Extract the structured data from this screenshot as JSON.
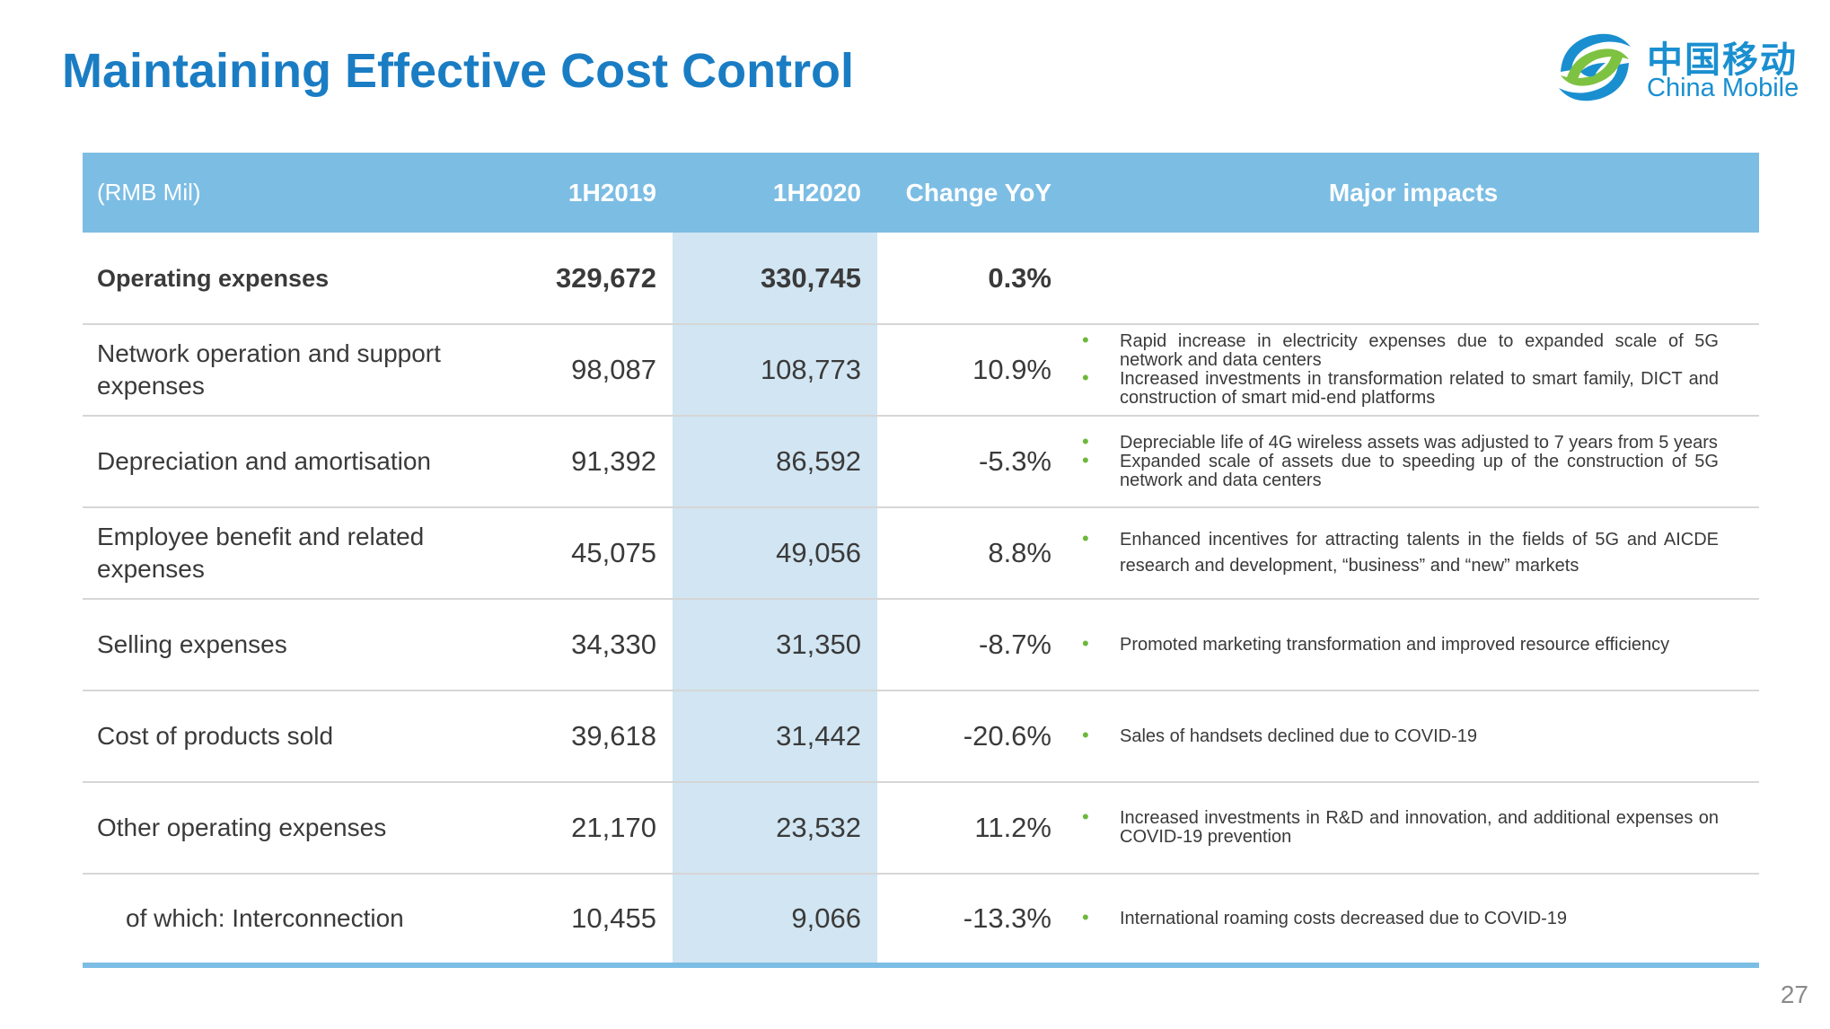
{
  "title": "Maintaining Effective Cost Control",
  "logo": {
    "cn": "中国移动",
    "en": "China Mobile",
    "icon": "china-mobile-logo-icon"
  },
  "table": {
    "headers": {
      "unit": "(RMB Mil)",
      "h2019": "1H2019",
      "h2020": "1H2020",
      "change": "Change YoY",
      "impacts": "Major impacts"
    },
    "rows": [
      {
        "label": "Operating expenses",
        "h2019": "329,672",
        "h2020": "330,745",
        "change": "0.3%",
        "impacts": []
      },
      {
        "label": "Network operation and support expenses",
        "h2019": "98,087",
        "h2020": "108,773",
        "change": "10.9%",
        "impacts": [
          "Rapid increase in electricity expenses due to expanded scale of 5G network and data centers",
          "Increased investments in transformation related to smart family, DICT and construction of smart mid-end platforms"
        ]
      },
      {
        "label": "Depreciation and amortisation",
        "h2019": "91,392",
        "h2020": "86,592",
        "change": "-5.3%",
        "impacts": [
          "Depreciable life of 4G wireless assets was adjusted to 7 years from 5 years",
          "Expanded scale of assets due to speeding up of the construction of 5G network and data centers"
        ]
      },
      {
        "label": "Employee benefit and related expenses",
        "h2019": "45,075",
        "h2020": "49,056",
        "change": "8.8%",
        "impacts": [
          "Enhanced incentives for attracting talents in the fields of 5G and AICDE research and development, “business” and “new” markets"
        ]
      },
      {
        "label": "Selling expenses",
        "h2019": "34,330",
        "h2020": "31,350",
        "change": "-8.7%",
        "impacts": [
          "Promoted marketing transformation and improved resource efficiency"
        ]
      },
      {
        "label": "Cost of products sold",
        "h2019": "39,618",
        "h2020": "31,442",
        "change": "-20.6%",
        "impacts": [
          "Sales of handsets declined due to COVID-19"
        ]
      },
      {
        "label": "Other operating expenses",
        "h2019": "21,170",
        "h2020": "23,532",
        "change": "11.2%",
        "impacts": [
          "Increased investments in R&D and innovation, and additional expenses on COVID-19 prevention"
        ]
      },
      {
        "label": "of which: Interconnection",
        "h2019": "10,455",
        "h2020": "9,066",
        "change": "-13.3%",
        "impacts": [
          "International roaming costs decreased due to COVID-19"
        ]
      }
    ]
  },
  "page_number": "27"
}
